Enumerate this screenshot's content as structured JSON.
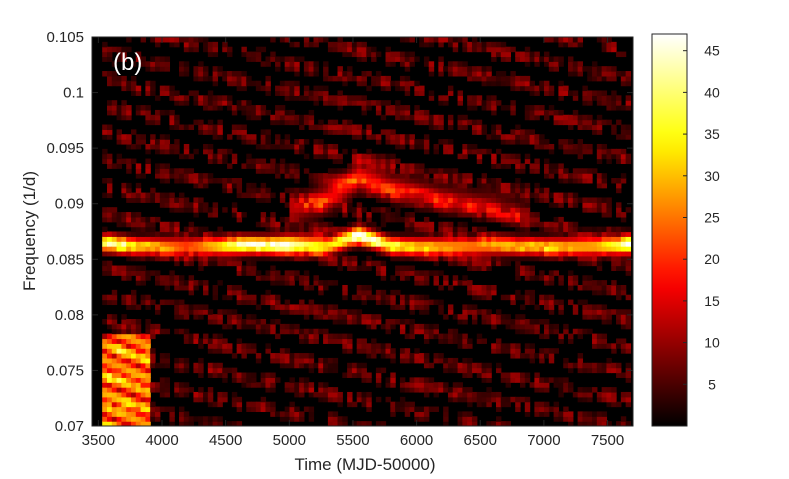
{
  "chart_data": {
    "type": "heatmap",
    "panel_label": "(b)",
    "xlabel": "Time (MJD-50000)",
    "ylabel": "Frequency (1/d)",
    "xlim": [
      3450,
      7700
    ],
    "ylim": [
      0.07,
      0.105
    ],
    "data_x_range": [
      3530,
      7680
    ],
    "xticks": [
      3500,
      4000,
      4500,
      5000,
      5500,
      6000,
      6500,
      7000,
      7500
    ],
    "xtick_labels": [
      "3500",
      "4000",
      "4500",
      "5000",
      "5500",
      "6000",
      "6500",
      "7000",
      "7500"
    ],
    "yticks": [
      0.07,
      0.075,
      0.08,
      0.085,
      0.09,
      0.095,
      0.1,
      0.105
    ],
    "ytick_labels": [
      "0.07",
      "0.075",
      "0.08",
      "0.085",
      "0.09",
      "0.095",
      "0.1",
      "0.105"
    ],
    "colormap": "hot",
    "color_range": [
      0,
      47
    ],
    "colorbar_ticks": [
      5,
      10,
      15,
      20,
      25,
      30,
      35,
      40,
      45
    ],
    "colorbar_tick_labels": [
      "5",
      "10",
      "15",
      "20",
      "25",
      "30",
      "35",
      "40",
      "45"
    ],
    "dominant_ridge": {
      "description": "persistent power ridge near 0.086 1/d",
      "x": [
        3530,
        3800,
        4200,
        4500,
        5000,
        5300,
        5550,
        5800,
        6200,
        6600,
        7000,
        7400,
        7680
      ],
      "frequency": [
        0.0865,
        0.0862,
        0.0862,
        0.0862,
        0.0864,
        0.0862,
        0.0873,
        0.0862,
        0.0862,
        0.0862,
        0.0862,
        0.0862,
        0.0863
      ],
      "power": [
        38,
        30,
        22,
        35,
        42,
        33,
        40,
        30,
        28,
        25,
        27,
        30,
        42
      ]
    },
    "secondary_ridge": {
      "x": [
        5000,
        5300,
        5550,
        5800,
        6200,
        6600,
        6900
      ],
      "frequency": [
        0.0895,
        0.0905,
        0.0925,
        0.0915,
        0.0905,
        0.0898,
        0.0888
      ],
      "power": [
        12,
        16,
        18,
        14,
        12,
        10,
        8
      ]
    },
    "low_frequency_hotspot": {
      "x": [
        3530,
        3900
      ],
      "frequency": [
        0.07,
        0.0785
      ],
      "power": 28
    }
  }
}
